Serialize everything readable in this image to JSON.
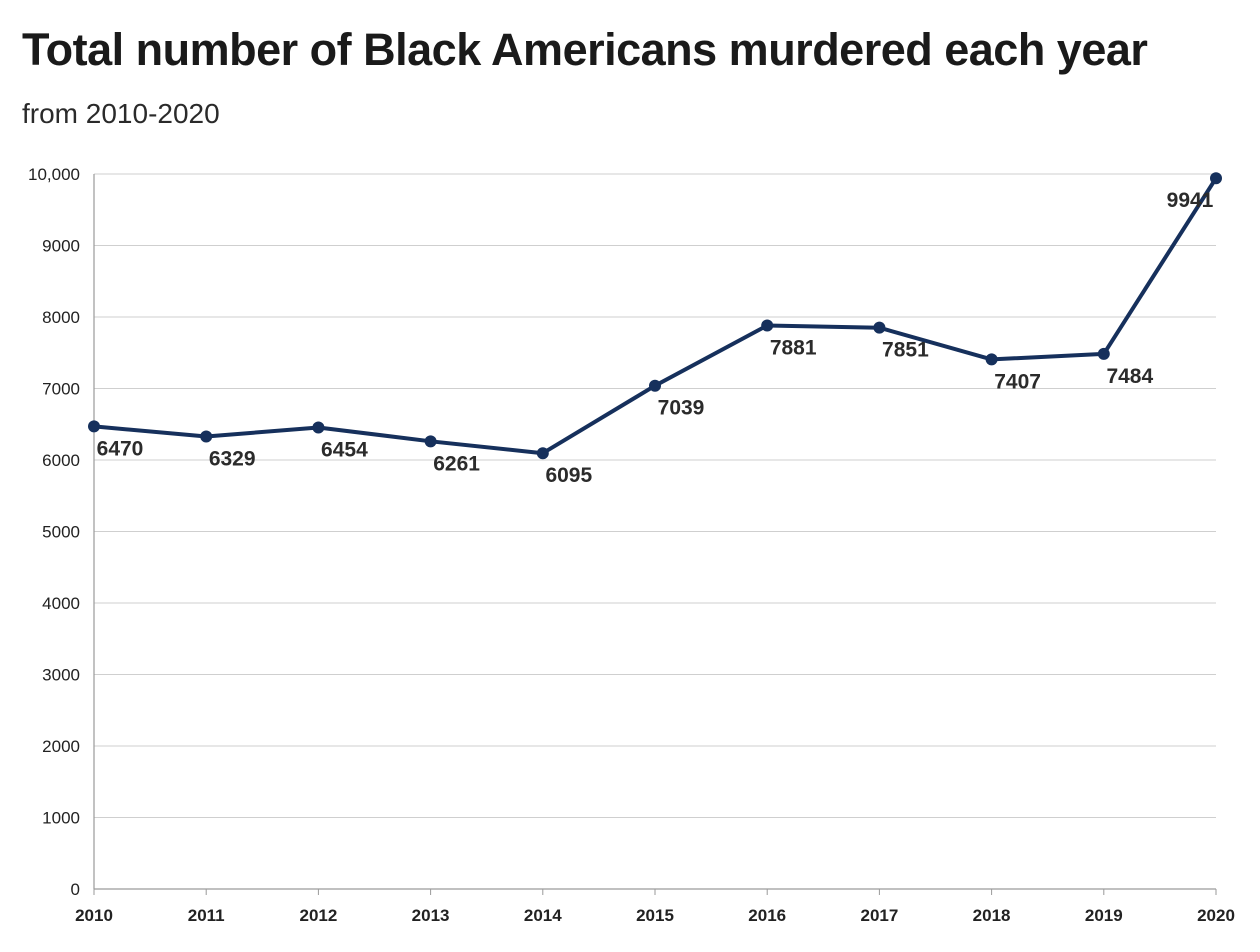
{
  "chart_data": {
    "type": "line",
    "title": "Total number of Black Americans murdered each year",
    "subtitle": "from 2010-2020",
    "xlabel": "",
    "ylabel": "",
    "x": [
      "2010",
      "2011",
      "2012",
      "2013",
      "2014",
      "2015",
      "2016",
      "2017",
      "2018",
      "2019",
      "2020"
    ],
    "series": [
      {
        "values": [
          6470,
          6329,
          6454,
          6261,
          6095,
          7039,
          7881,
          7851,
          7407,
          7484,
          9941
        ],
        "color": "#16305c"
      }
    ],
    "ylim": [
      0,
      10000
    ],
    "yticks": [
      0,
      1000,
      2000,
      3000,
      4000,
      5000,
      6000,
      7000,
      8000,
      9000,
      10000
    ],
    "ytick_labels": [
      "0",
      "1000",
      "2000",
      "3000",
      "4000",
      "5000",
      "6000",
      "7000",
      "8000",
      "9000",
      "10,000"
    ],
    "grid": true,
    "legend": "none",
    "data_labels": true
  }
}
